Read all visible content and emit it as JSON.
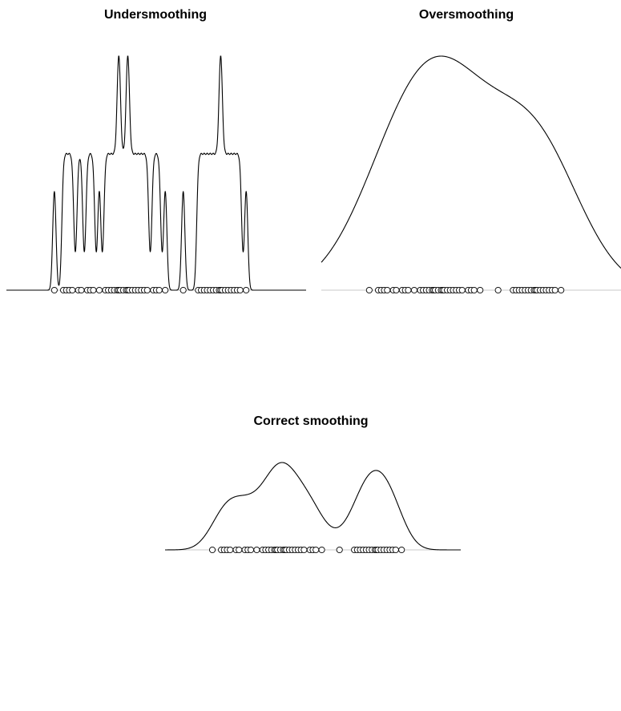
{
  "chart_data": [
    {
      "type": "line",
      "title": "Undersmoothing",
      "xlabel": "",
      "ylabel": "",
      "axes": "none",
      "grid": false,
      "x_range": [
        0,
        100
      ],
      "y_range": [
        0,
        1
      ],
      "bandwidth_relative": "small",
      "x": [
        16,
        19,
        20,
        21,
        22,
        24,
        25,
        27,
        28,
        29,
        31,
        33,
        34,
        35,
        36,
        37,
        37.5,
        38,
        39,
        40,
        40.5,
        41,
        42,
        43,
        44,
        45,
        46,
        47,
        49,
        50,
        51,
        53,
        59,
        64,
        65,
        66,
        67,
        68,
        69,
        70,
        71,
        71.5,
        72,
        73,
        74,
        75,
        76,
        77,
        78,
        80
      ],
      "rug": true
    },
    {
      "type": "line",
      "title": "Oversmoothing",
      "xlabel": "",
      "ylabel": "",
      "axes": "none",
      "grid": false,
      "x_range": [
        0,
        100
      ],
      "y_range": [
        0,
        1
      ],
      "bandwidth_relative": "large",
      "x": [
        16,
        19,
        20,
        21,
        22,
        24,
        25,
        27,
        28,
        29,
        31,
        33,
        34,
        35,
        36,
        37,
        37.5,
        38,
        39,
        40,
        40.5,
        41,
        42,
        43,
        44,
        45,
        46,
        47,
        49,
        50,
        51,
        53,
        59,
        64,
        65,
        66,
        67,
        68,
        69,
        70,
        71,
        71.5,
        72,
        73,
        74,
        75,
        76,
        77,
        78,
        80
      ],
      "rug": true
    },
    {
      "type": "line",
      "title": "Correct smoothing",
      "xlabel": "",
      "ylabel": "",
      "axes": "none",
      "grid": false,
      "x_range": [
        0,
        100
      ],
      "y_range": [
        0,
        1
      ],
      "bandwidth_relative": "medium",
      "x": [
        16,
        19,
        20,
        21,
        22,
        24,
        25,
        27,
        28,
        29,
        31,
        33,
        34,
        35,
        36,
        37,
        37.5,
        38,
        39,
        40,
        40.5,
        41,
        42,
        43,
        44,
        45,
        46,
        47,
        49,
        50,
        51,
        53,
        59,
        64,
        65,
        66,
        67,
        68,
        69,
        70,
        71,
        71.5,
        72,
        73,
        74,
        75,
        76,
        77,
        78,
        80
      ],
      "rug": true
    }
  ]
}
